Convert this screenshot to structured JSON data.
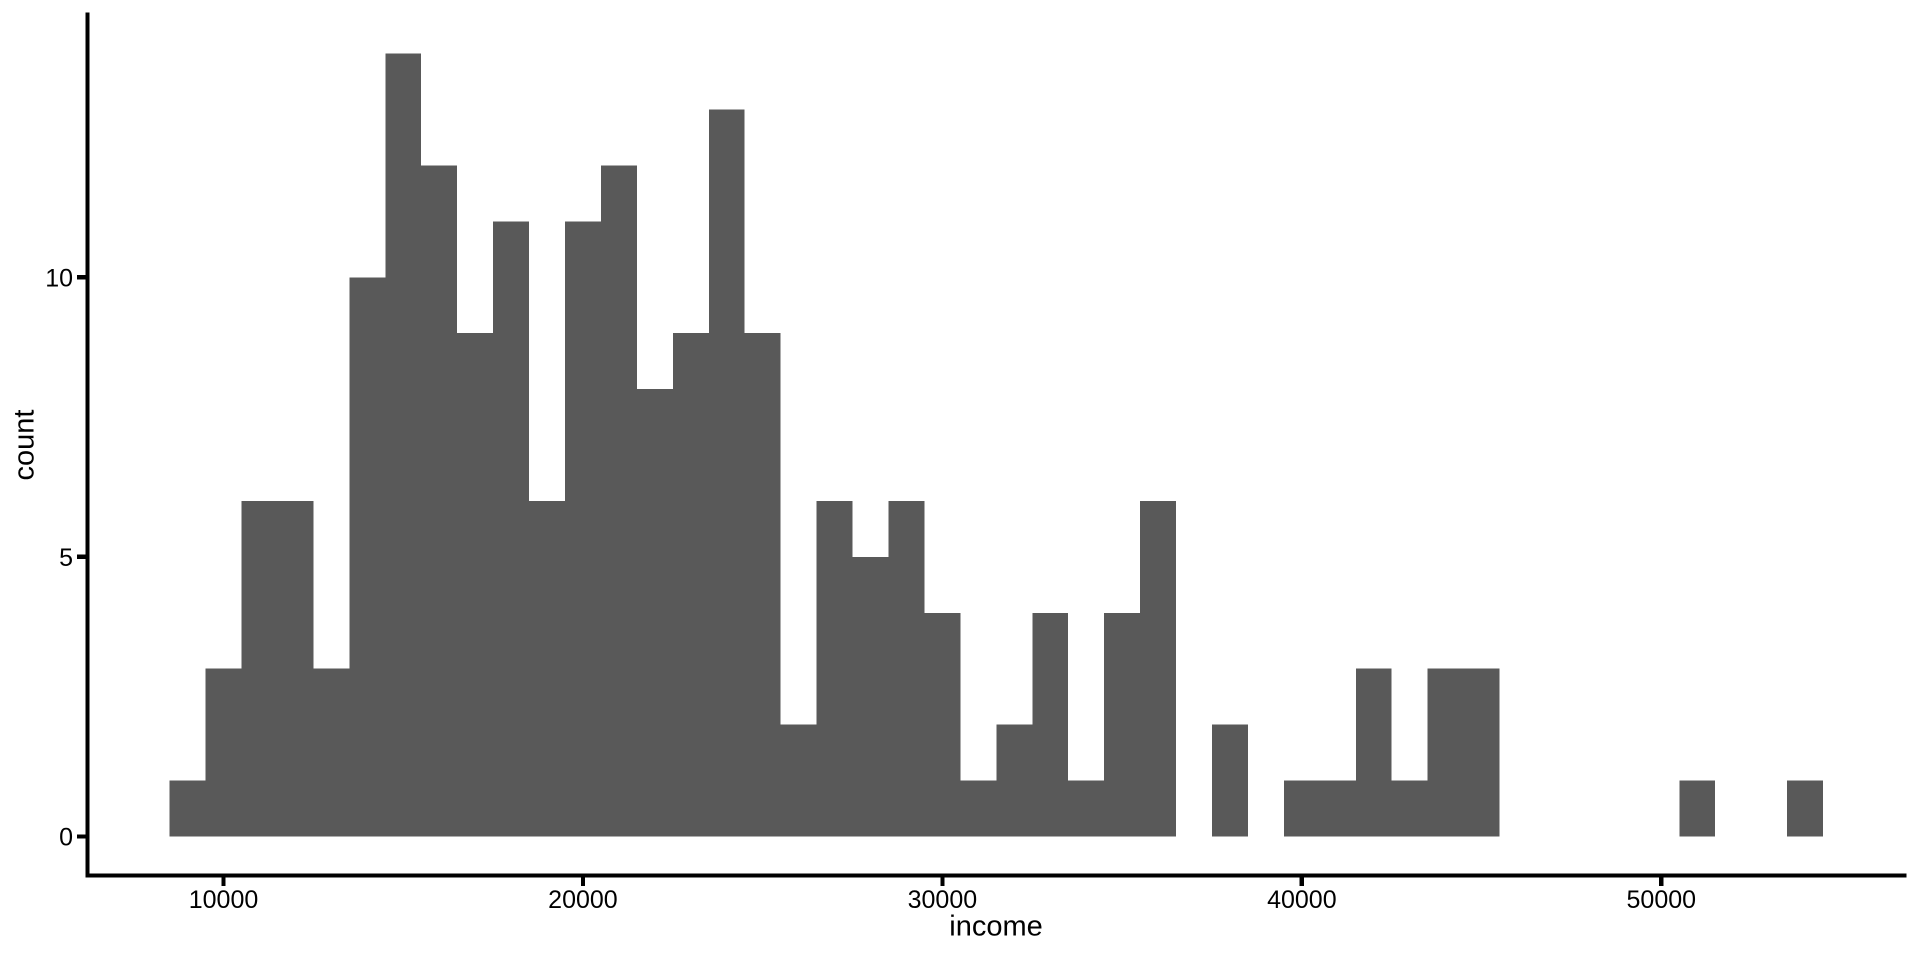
{
  "chart_data": {
    "type": "bar",
    "subtype": "histogram",
    "title": "",
    "xlabel": "income",
    "ylabel": "count",
    "bar_color": "#595959",
    "axis_color": "#000000",
    "text_color": "#000000",
    "background": "#ffffff",
    "grid": false,
    "legend": false,
    "bin_start": 8500,
    "bin_width": 1000,
    "counts": [
      1,
      3,
      6,
      6,
      3,
      10,
      14,
      12,
      9,
      11,
      6,
      11,
      12,
      8,
      9,
      13,
      9,
      2,
      6,
      5,
      6,
      4,
      1,
      2,
      4,
      1,
      4,
      6,
      0,
      2,
      0,
      1,
      1,
      3,
      1,
      3,
      3,
      0,
      0,
      0,
      0,
      0,
      1,
      0,
      0,
      1
    ],
    "total_count": 200,
    "x_ticks": [
      {
        "value": 10000,
        "label": "10000"
      },
      {
        "value": 20000,
        "label": "20000"
      },
      {
        "value": 30000,
        "label": "30000"
      },
      {
        "value": 40000,
        "label": "40000"
      },
      {
        "value": 50000,
        "label": "50000"
      }
    ],
    "y_ticks": [
      {
        "value": 0,
        "label": "0"
      },
      {
        "value": 5,
        "label": "5"
      },
      {
        "value": 10,
        "label": "10"
      }
    ],
    "x_range": [
      6200,
      56800
    ],
    "y_range": [
      0,
      14.7
    ],
    "y_max_bar": 14
  }
}
